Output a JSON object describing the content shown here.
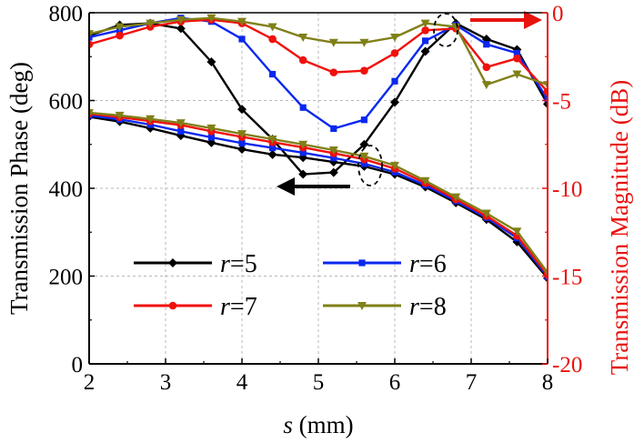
{
  "chart_data": {
    "type": "line",
    "x": [
      2.0,
      2.4,
      2.8,
      3.2,
      3.6,
      4.0,
      4.4,
      4.8,
      5.2,
      5.6,
      6.0,
      6.4,
      6.8,
      7.2,
      7.6,
      8.0
    ],
    "x_axis": {
      "label_prefix": "s",
      "label_suffix": " (mm)",
      "range": [
        2,
        8
      ],
      "ticks": [
        2,
        3,
        4,
        5,
        6,
        7,
        8
      ],
      "tick_labels": [
        "2",
        "3",
        "4",
        "5",
        "6",
        "7",
        "8"
      ]
    },
    "y_left": {
      "label": "Transmission Phase (deg)",
      "range": [
        0,
        800
      ],
      "ticks": [
        0,
        200,
        400,
        600,
        800
      ],
      "tick_labels": [
        "0",
        "200",
        "400",
        "600",
        "800"
      ],
      "color": "#000000"
    },
    "y_right": {
      "label": "Transmission Magnitude (dB)",
      "range": [
        -20,
        0
      ],
      "ticks": [
        -20,
        -15,
        -10,
        -5,
        0
      ],
      "tick_labels": [
        "-20",
        "-15",
        "-10",
        "-5",
        "0"
      ],
      "color": "#e8130f"
    },
    "grid": true,
    "series": [
      {
        "name": "r=5",
        "legend_var": "r",
        "legend_eq": "=5",
        "color": "#000000",
        "marker": "diamond",
        "phase": [
          563,
          552,
          537,
          520,
          504,
          489,
          477,
          470,
          460,
          450,
          432,
          403,
          367,
          329,
          278,
          195
        ],
        "magnitude": [
          -1.3,
          -0.7,
          -0.6,
          -0.9,
          -2.8,
          -5.5,
          -7.2,
          -9.2,
          -9.1,
          -7.5,
          -5.1,
          -2.2,
          -0.6,
          -1.5,
          -2.1,
          -5.2
        ]
      },
      {
        "name": "r=6",
        "legend_var": "r",
        "legend_eq": "=6",
        "color": "#0a28ee",
        "marker": "square",
        "phase": [
          566,
          557,
          545,
          530,
          516,
          503,
          492,
          481,
          469,
          456,
          437,
          407,
          371,
          333,
          287,
          199
        ],
        "magnitude": [
          -1.4,
          -1.0,
          -0.6,
          -0.3,
          -0.5,
          -1.5,
          -3.5,
          -5.4,
          -6.6,
          -6.1,
          -3.9,
          -1.6,
          -0.7,
          -1.8,
          -2.3,
          -4.9
        ]
      },
      {
        "name": "r=7",
        "legend_var": "r",
        "legend_eq": "=7",
        "color": "#f0100c",
        "marker": "circle",
        "phase": [
          570,
          562,
          553,
          544,
          530,
          517,
          505,
          493,
          480,
          466,
          445,
          412,
          375,
          337,
          292,
          203
        ],
        "magnitude": [
          -1.8,
          -1.3,
          -0.8,
          -0.5,
          -0.4,
          -0.6,
          -1.5,
          -2.7,
          -3.4,
          -3.3,
          -2.3,
          -1.0,
          -0.9,
          -3.1,
          -2.6,
          -4.5
        ]
      },
      {
        "name": "r=8",
        "legend_var": "r",
        "legend_eq": "=8",
        "color": "#808018",
        "marker": "triangle-down",
        "phase": [
          572,
          566,
          558,
          549,
          537,
          524,
          512,
          500,
          487,
          473,
          452,
          417,
          380,
          343,
          302,
          208
        ],
        "magnitude": [
          -1.2,
          -0.8,
          -0.6,
          -0.4,
          -0.3,
          -0.5,
          -0.8,
          -1.4,
          -1.7,
          -1.7,
          -1.4,
          -0.6,
          -0.8,
          -4.1,
          -3.5,
          -4.1
        ]
      }
    ]
  }
}
